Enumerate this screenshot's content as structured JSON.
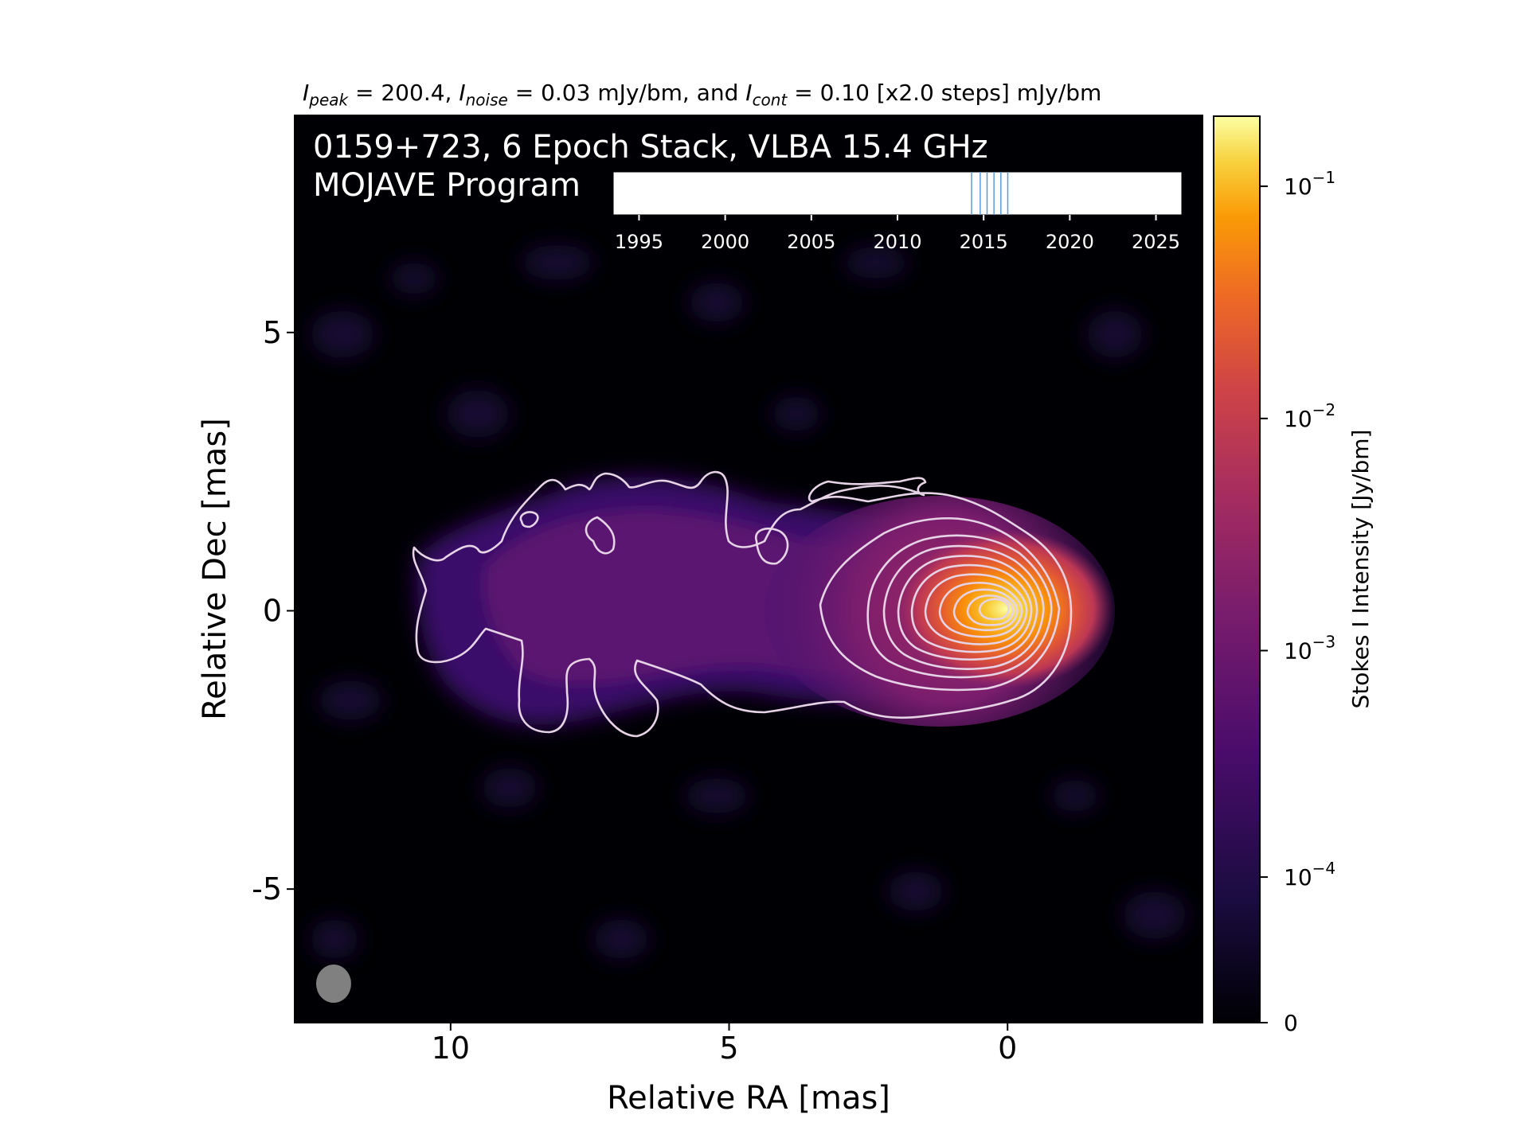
{
  "chart_data": {
    "type": "heatmap",
    "title": {
      "peak_sym": "I",
      "peak_sub": "peak",
      "peak_text": " = 200.4, ",
      "noise_sym": "I",
      "noise_sub": "noise",
      "noise_text": " = 0.03 mJy/bm, and ",
      "cont_sym": "I",
      "cont_sub": "cont",
      "cont_text": " = 0.10 [x2.0 steps] mJy/bm"
    },
    "annotation": {
      "line1": "0159+723, 6 Epoch Stack, VLBA 15.4 GHz",
      "line2": "MOJAVE Program"
    },
    "xlabel": "Relative RA [mas]",
    "ylabel": "Relative Dec [mas]",
    "xlim": [
      12.8,
      -3.5
    ],
    "ylim": [
      -7.4,
      8.9
    ],
    "x_ticks": [
      {
        "value": 10,
        "label": "10"
      },
      {
        "value": 5,
        "label": "5"
      },
      {
        "value": 0,
        "label": "0"
      }
    ],
    "y_ticks": [
      {
        "value": 5,
        "label": "5"
      },
      {
        "value": 0,
        "label": "0"
      },
      {
        "value": -5,
        "label": "-5"
      }
    ],
    "peak_position": [
      0,
      0
    ],
    "beam": {
      "x": 12.1,
      "y": -6.7,
      "major_mas": 0.65,
      "minor_mas": 0.62
    },
    "colorbar": {
      "label": "Stokes I Intensity [Jy/bm]",
      "colormap": "inferno",
      "range": [
        0,
        0.2004
      ],
      "ticks": [
        {
          "value": 0.1,
          "label_base": "10",
          "label_exp": "−1"
        },
        {
          "value": 0.01,
          "label_base": "10",
          "label_exp": "−2"
        },
        {
          "value": 0.001,
          "label_base": "10",
          "label_exp": "−3"
        },
        {
          "value": 0.0001,
          "label_base": "10",
          "label_exp": "−4"
        },
        {
          "value": 0,
          "label_base": "0",
          "label_exp": ""
        }
      ]
    },
    "contours": {
      "base_mJy": 0.1,
      "step_factor": 2.0,
      "color": "#e6d3e6"
    },
    "epoch_timeline": {
      "xlim": [
        1993.5,
        2026.5
      ],
      "ticks": [
        {
          "value": 1995,
          "label": "1995"
        },
        {
          "value": 2000,
          "label": "2000"
        },
        {
          "value": 2005,
          "label": "2005"
        },
        {
          "value": 2010,
          "label": "2010"
        },
        {
          "value": 2015,
          "label": "2015"
        },
        {
          "value": 2020,
          "label": "2020"
        },
        {
          "value": 2025,
          "label": "2025"
        }
      ],
      "epochs": [
        2014.3,
        2014.8,
        2015.2,
        2015.6,
        2016.0,
        2016.4
      ],
      "line_color": "#5b9bd5"
    },
    "colors": {
      "background": "#000000",
      "beam": "#808080",
      "text_on_plot": "#ffffff"
    }
  }
}
